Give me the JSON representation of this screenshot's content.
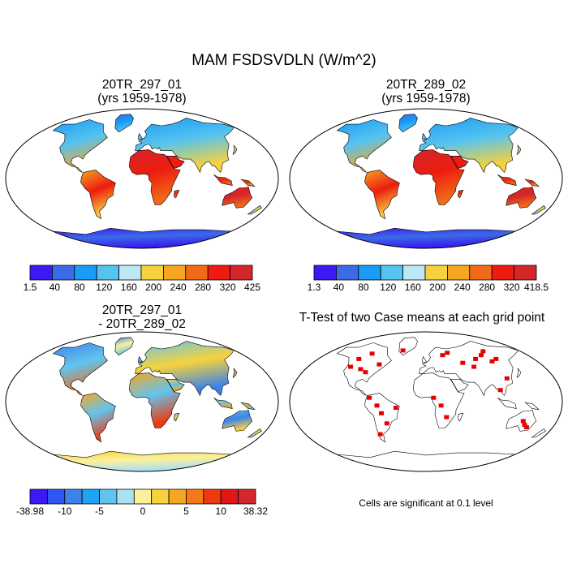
{
  "title": "MAM FSDSVDLN (W/m^2)",
  "panels": [
    {
      "id": "case1",
      "title_lines": [
        "20TR_297_01",
        "(yrs 1959-1978)"
      ],
      "colorbar": {
        "labels": [
          "1.5",
          "40",
          "80",
          "120",
          "160",
          "200",
          "240",
          "280",
          "320",
          "425"
        ],
        "colors": [
          "#3a1af2",
          "#3b6be6",
          "#1a9bf5",
          "#55c3f0",
          "#bde7f5",
          "#f7d23d",
          "#f6a623",
          "#f06a1a",
          "#ed1c0e",
          "#d3272b"
        ]
      }
    },
    {
      "id": "case2",
      "title_lines": [
        "20TR_289_02",
        "(yrs 1959-1978)"
      ],
      "colorbar": {
        "labels": [
          "1.3",
          "40",
          "80",
          "120",
          "160",
          "200",
          "240",
          "280",
          "320",
          "418.5"
        ],
        "colors": [
          "#3a1af2",
          "#3b6be6",
          "#1a9bf5",
          "#55c3f0",
          "#bde7f5",
          "#f7d23d",
          "#f6a623",
          "#f06a1a",
          "#ed1c0e",
          "#d3272b"
        ]
      }
    },
    {
      "id": "diff",
      "title_lines": [
        "20TR_297_01",
        "- 20TR_289_02"
      ],
      "colorbar": {
        "labels": [
          "-38.98",
          "-10",
          "-5",
          "0",
          "5",
          "10",
          "38.32"
        ],
        "colors": [
          "#3a1af2",
          "#2f56f0",
          "#3b82ea",
          "#1ea4f0",
          "#62c4ee",
          "#aee0f2",
          "#fbf19a",
          "#f7d23d",
          "#f6a623",
          "#f27a1a",
          "#ed3a10",
          "#e11616",
          "#d3272b"
        ]
      }
    },
    {
      "id": "ttest",
      "title_lines": [
        "T-Test of two Case means at each grid point"
      ],
      "note": "Cells are significant at 0.1 level",
      "colors": {
        "significant": "#e60000"
      }
    }
  ],
  "chart_data": [
    {
      "type": "heatmap",
      "title": "20TR_297_01 (yrs 1959-1978)",
      "variable": "MAM FSDSVDLN",
      "units": "W/m^2",
      "range": [
        1.5,
        425
      ],
      "levels": [
        40,
        80,
        120,
        160,
        200,
        240,
        280,
        320
      ]
    },
    {
      "type": "heatmap",
      "title": "20TR_289_02 (yrs 1959-1978)",
      "variable": "MAM FSDSVDLN",
      "units": "W/m^2",
      "range": [
        1.3,
        418.5
      ],
      "levels": [
        40,
        80,
        120,
        160,
        200,
        240,
        280,
        320
      ]
    },
    {
      "type": "heatmap",
      "title": "20TR_297_01 - 20TR_289_02",
      "range": [
        -38.98,
        38.32
      ],
      "labeled_levels": [
        -10,
        -5,
        0,
        5,
        10
      ]
    },
    {
      "type": "heatmap",
      "title": "T-Test of two Case means at each grid point",
      "significance_level": 0.1
    }
  ]
}
